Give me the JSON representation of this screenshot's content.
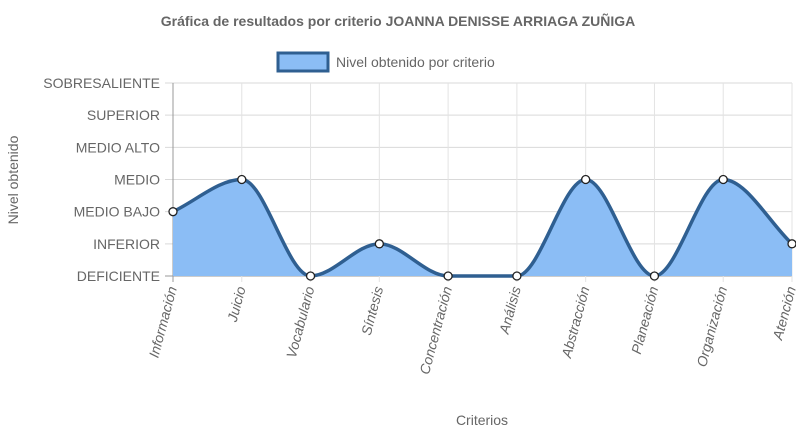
{
  "chart_data": {
    "type": "area",
    "title": "Gráfica de resultados por criterio JOANNA DENISSE ARRIAGA ZUÑIGA",
    "xlabel": "Criterios",
    "ylabel": "Nivel obtenido",
    "categories": [
      "Información",
      "Juicio",
      "Vocabulario",
      "Síntesis",
      "Concentración",
      "Análisis",
      "Abstracción",
      "Planeación",
      "Organización",
      "Atención"
    ],
    "y_levels": [
      "DEFICIENTE",
      "INFERIOR",
      "MEDIO BAJO",
      "MEDIO",
      "MEDIO ALTO",
      "SUPERIOR",
      "SOBRESALIENTE"
    ],
    "series": [
      {
        "name": "Nivel obtenido por criterio",
        "values": [
          2,
          3,
          0,
          1,
          0,
          0,
          3,
          0,
          3,
          1
        ],
        "labels": [
          "MEDIO BAJO",
          "MEDIO",
          "DEFICIENTE",
          "INFERIOR",
          "DEFICIENTE",
          "DEFICIENTE",
          "MEDIO",
          "DEFICIENTE",
          "MEDIO",
          "INFERIOR"
        ]
      }
    ],
    "ylim": [
      0,
      6
    ],
    "grid": true,
    "legend_position": "top",
    "colors": {
      "fill": "#8bbdf5",
      "stroke": "#2f5f91",
      "point_fill": "#ffffff",
      "grid": "#e0e0e0",
      "axis": "#666666"
    }
  }
}
